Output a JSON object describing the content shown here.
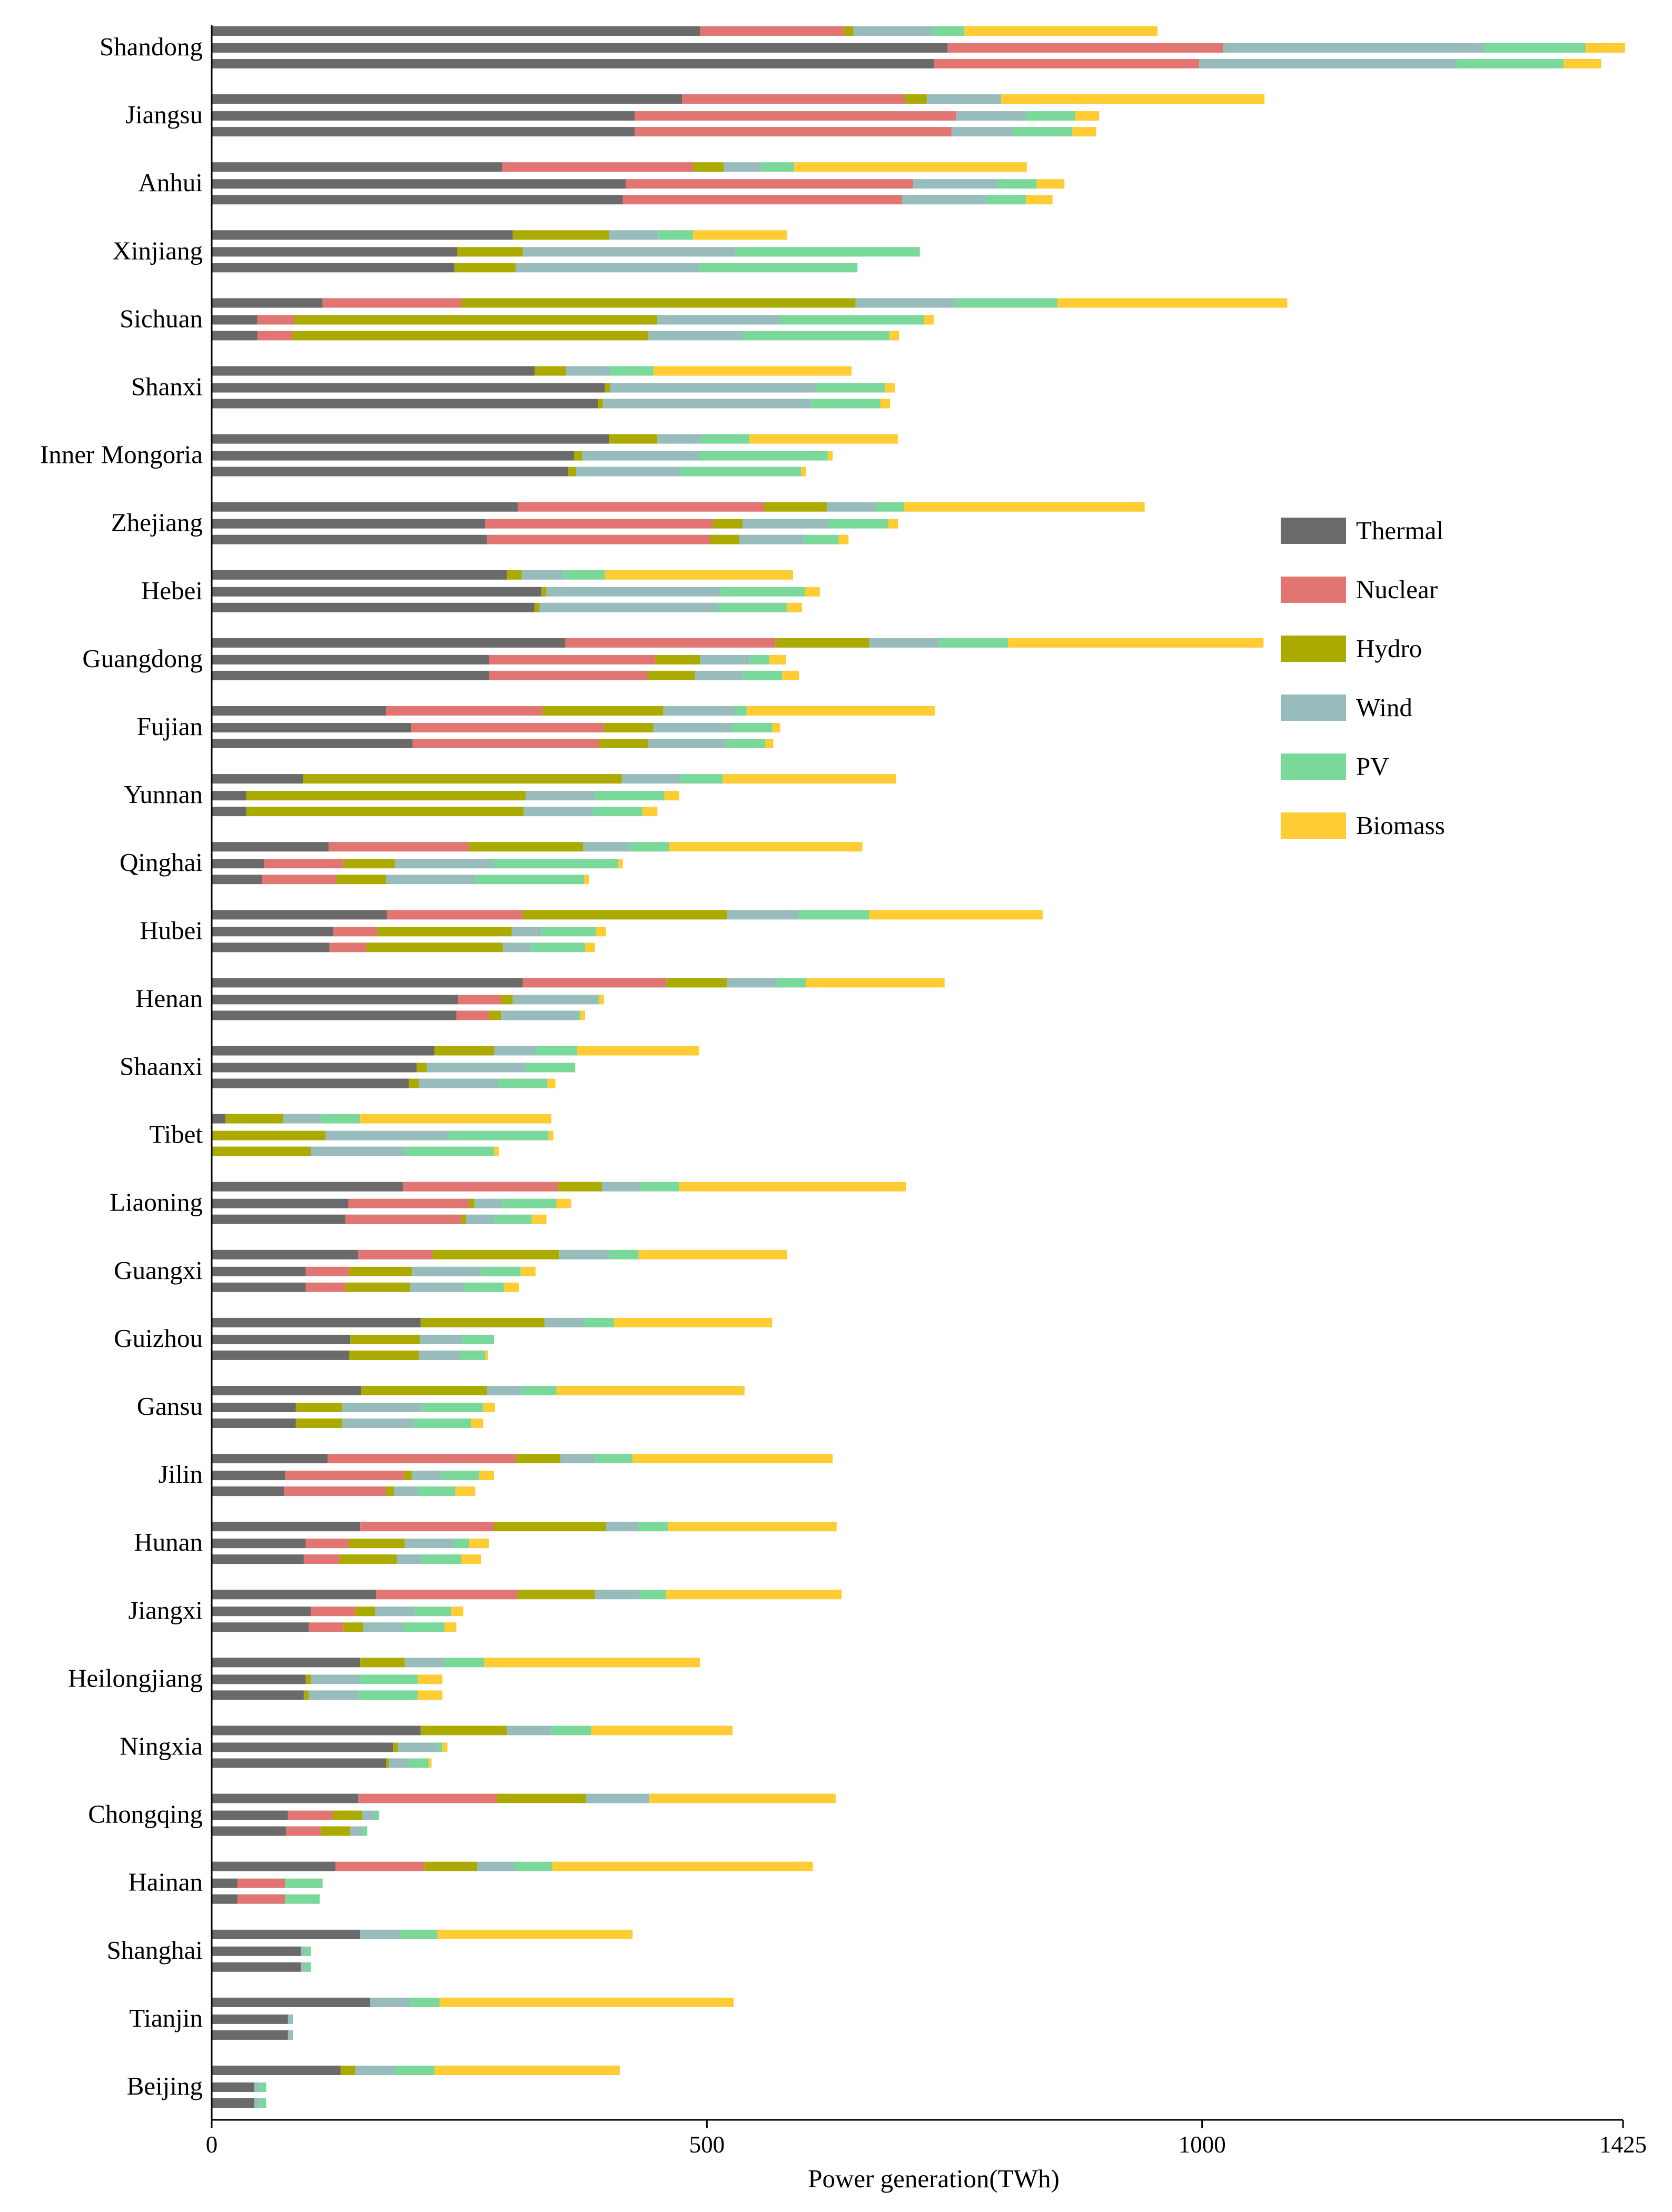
{
  "chart_data": {
    "type": "bar",
    "orientation": "horizontal",
    "stacked": true,
    "title": "",
    "xlabel": "Power generation(TWh)",
    "ylabel": "",
    "xlim": [
      0,
      1425
    ],
    "xticks": [
      0,
      500,
      1000,
      1425
    ],
    "grid": false,
    "legend_position": "right",
    "components": [
      "Thermal",
      "Nuclear",
      "Hydro",
      "Wind",
      "PV",
      "Biomass"
    ],
    "colors": [
      "#6a6a6a",
      "#e07572",
      "#aaaa00",
      "#98bbbb",
      "#79d89a",
      "#ffcc33"
    ],
    "provinces": [
      {
        "name": "Shandong",
        "bars": [
          [
            493,
            145,
            10,
            80,
            32,
            195
          ],
          [
            743,
            278,
            0,
            264,
            102,
            40
          ],
          [
            729,
            268,
            0,
            260,
            108,
            38
          ]
        ]
      },
      {
        "name": "Jiangsu",
        "bars": [
          [
            475,
            225,
            22,
            75,
            0,
            266
          ],
          [
            427,
            325,
            0,
            70,
            50,
            24
          ],
          [
            427,
            320,
            0,
            62,
            60,
            24
          ]
        ]
      },
      {
        "name": "Anhui",
        "bars": [
          [
            293,
            193,
            31,
            38,
            33,
            235
          ],
          [
            418,
            290,
            0,
            85,
            40,
            28
          ],
          [
            415,
            282,
            0,
            85,
            40,
            27
          ]
        ]
      },
      {
        "name": "Xinjiang",
        "bars": [
          [
            304,
            0,
            97,
            50,
            35,
            95
          ],
          [
            248,
            0,
            66,
            215,
            186,
            0
          ],
          [
            245,
            0,
            62,
            185,
            160,
            0
          ]
        ]
      },
      {
        "name": "Sichuan",
        "bars": [
          [
            112,
            140,
            398,
            102,
            102,
            232
          ],
          [
            46,
            37,
            367,
            124,
            145,
            10
          ],
          [
            46,
            35,
            360,
            95,
            148,
            10
          ]
        ]
      },
      {
        "name": "Shanxi",
        "bars": [
          [
            326,
            0,
            32,
            44,
            44,
            200
          ],
          [
            397,
            0,
            5,
            208,
            70,
            10
          ],
          [
            390,
            0,
            5,
            210,
            70,
            10
          ]
        ]
      },
      {
        "name": "Inner Mongoria",
        "bars": [
          [
            401,
            0,
            49,
            44,
            49,
            150
          ],
          [
            366,
            0,
            8,
            118,
            130,
            5
          ],
          [
            360,
            0,
            8,
            105,
            122,
            5
          ]
        ]
      },
      {
        "name": "Zhejiang",
        "bars": [
          [
            309,
            249,
            63,
            50,
            28,
            243
          ],
          [
            276,
            230,
            30,
            87,
            60,
            10
          ],
          [
            278,
            225,
            30,
            65,
            35,
            10
          ]
        ]
      },
      {
        "name": "Hebei",
        "bars": [
          [
            298,
            0,
            15,
            42,
            42,
            190
          ],
          [
            333,
            0,
            5,
            176,
            85,
            15
          ],
          [
            326,
            0,
            5,
            180,
            70,
            15
          ]
        ]
      },
      {
        "name": "Guangdong",
        "bars": [
          [
            357,
            212,
            95,
            70,
            70,
            258
          ],
          [
            280,
            168,
            45,
            50,
            20,
            17
          ],
          [
            280,
            160,
            48,
            48,
            40,
            17
          ]
        ]
      },
      {
        "name": "Fujian",
        "bars": [
          [
            176,
            158,
            122,
            72,
            12,
            190
          ],
          [
            201,
            195,
            50,
            80,
            40,
            8
          ],
          [
            203,
            188,
            50,
            78,
            40,
            8
          ]
        ]
      },
      {
        "name": "Yunnan",
        "bars": [
          [
            92,
            0,
            322,
            60,
            42,
            175
          ],
          [
            35,
            0,
            282,
            70,
            70,
            15
          ],
          [
            35,
            0,
            280,
            70,
            50,
            15
          ]
        ]
      },
      {
        "name": "Qinghai",
        "bars": [
          [
            118,
            142,
            115,
            47,
            40,
            195
          ],
          [
            53,
            80,
            52,
            100,
            125,
            5
          ],
          [
            51,
            75,
            50,
            90,
            110,
            5
          ]
        ]
      },
      {
        "name": "Hubei",
        "bars": [
          [
            177,
            137,
            206,
            72,
            72,
            175
          ],
          [
            123,
            44,
            136,
            30,
            55,
            10
          ],
          [
            119,
            37,
            138,
            28,
            55,
            10
          ]
        ]
      },
      {
        "name": "Henan",
        "bars": [
          [
            314,
            145,
            61,
            50,
            30,
            140
          ],
          [
            249,
            43,
            12,
            85,
            2,
            5
          ],
          [
            247,
            33,
            12,
            78,
            2,
            5
          ]
        ]
      },
      {
        "name": "Shaanxi",
        "bars": [
          [
            225,
            0,
            60,
            42,
            42,
            123
          ],
          [
            207,
            0,
            10,
            100,
            50,
            0
          ],
          [
            199,
            0,
            10,
            80,
            50,
            8
          ]
        ]
      },
      {
        "name": "Tibet",
        "bars": [
          [
            14,
            0,
            58,
            38,
            40,
            193
          ],
          [
            0,
            0,
            115,
            125,
            100,
            5
          ],
          [
            0,
            0,
            100,
            95,
            90,
            5
          ]
        ]
      },
      {
        "name": "Liaoning",
        "bars": [
          [
            193,
            157,
            44,
            39,
            39,
            229
          ],
          [
            138,
            122,
            5,
            28,
            55,
            15
          ],
          [
            135,
            117,
            5,
            28,
            38,
            15
          ]
        ]
      },
      {
        "name": "Guangxi",
        "bars": [
          [
            148,
            75,
            128,
            50,
            30,
            150
          ],
          [
            95,
            44,
            63,
            70,
            40,
            15
          ],
          [
            95,
            40,
            65,
            55,
            40,
            15
          ]
        ]
      },
      {
        "name": "Guizhou",
        "bars": [
          [
            211,
            0,
            125,
            40,
            30,
            160
          ],
          [
            140,
            0,
            70,
            43,
            32,
            0
          ],
          [
            139,
            0,
            70,
            42,
            25,
            3
          ]
        ]
      },
      {
        "name": "Gansu",
        "bars": [
          [
            151,
            0,
            127,
            35,
            35,
            190
          ],
          [
            85,
            0,
            47,
            80,
            62,
            12
          ],
          [
            85,
            0,
            47,
            72,
            58,
            12
          ]
        ]
      },
      {
        "name": "Jilin",
        "bars": [
          [
            117,
            190,
            45,
            35,
            38,
            202
          ],
          [
            74,
            120,
            8,
            30,
            38,
            15
          ],
          [
            73,
            103,
            8,
            24,
            38,
            20
          ]
        ]
      },
      {
        "name": "Hunan",
        "bars": [
          [
            150,
            135,
            113,
            33,
            30,
            170
          ],
          [
            95,
            43,
            57,
            50,
            15,
            20
          ],
          [
            93,
            36,
            58,
            25,
            40,
            20
          ]
        ]
      },
      {
        "name": "Jiangxi",
        "bars": [
          [
            166,
            143,
            78,
            45,
            27,
            177
          ],
          [
            100,
            45,
            20,
            40,
            37,
            12
          ],
          [
            98,
            35,
            20,
            40,
            42,
            12
          ]
        ]
      },
      {
        "name": "Heilongjiang",
        "bars": [
          [
            150,
            0,
            45,
            40,
            40,
            218
          ],
          [
            95,
            0,
            5,
            50,
            58,
            25
          ],
          [
            93,
            0,
            5,
            50,
            60,
            25
          ]
        ]
      },
      {
        "name": "Ningxia",
        "bars": [
          [
            211,
            0,
            87,
            45,
            40,
            143
          ],
          [
            183,
            0,
            5,
            40,
            5,
            5
          ],
          [
            176,
            0,
            3,
            20,
            20,
            3
          ]
        ]
      },
      {
        "name": "Chongqing",
        "bars": [
          [
            148,
            140,
            90,
            64,
            0,
            188
          ],
          [
            77,
            45,
            30,
            12,
            5,
            0
          ],
          [
            75,
            35,
            30,
            12,
            5,
            0
          ]
        ]
      },
      {
        "name": "Hainan",
        "bars": [
          [
            125,
            90,
            53,
            38,
            38,
            263
          ],
          [
            26,
            48,
            0,
            0,
            38,
            0
          ],
          [
            26,
            48,
            0,
            0,
            35,
            0
          ]
        ]
      },
      {
        "name": "Shanghai",
        "bars": [
          [
            150,
            0,
            0,
            40,
            38,
            197
          ],
          [
            90,
            0,
            0,
            5,
            5,
            0
          ],
          [
            90,
            0,
            0,
            5,
            5,
            0
          ]
        ]
      },
      {
        "name": "Tianjin",
        "bars": [
          [
            160,
            0,
            0,
            40,
            30,
            297
          ],
          [
            77,
            0,
            0,
            5,
            0,
            0
          ],
          [
            77,
            0,
            0,
            5,
            0,
            0
          ]
        ]
      },
      {
        "name": "Beijing",
        "bars": [
          [
            130,
            0,
            15,
            40,
            40,
            187
          ],
          [
            43,
            0,
            0,
            5,
            7,
            0
          ],
          [
            43,
            0,
            0,
            5,
            7,
            0
          ]
        ]
      }
    ]
  }
}
